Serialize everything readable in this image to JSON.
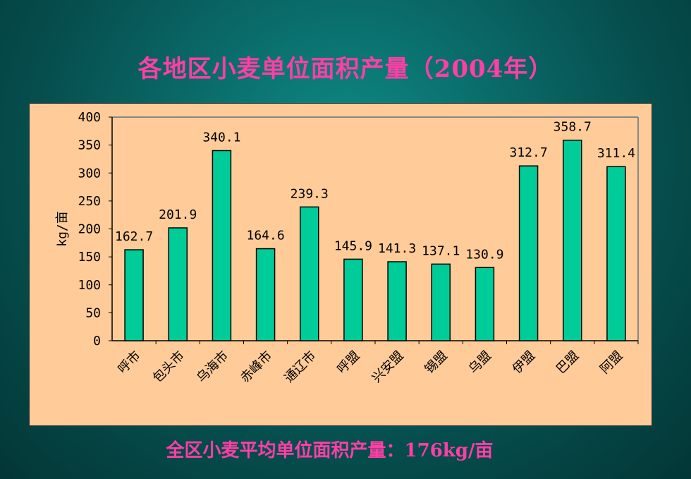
{
  "slide": {
    "title": "各地区小麦单位面积产量（2004年）",
    "footer": "全区小麦平均单位面积产量：176kg/亩"
  },
  "colors": {
    "background": "#064d4d",
    "title": "#ff3ea6",
    "plot_area": "#ffcc99",
    "bar_fill": "#00cc99",
    "bar_stroke": "#000000"
  },
  "chart_data": {
    "type": "bar",
    "title": "",
    "xlabel": "",
    "ylabel": "kg/亩",
    "ylim": [
      0,
      400
    ],
    "yticks": [
      0,
      50,
      100,
      150,
      200,
      250,
      300,
      350,
      400
    ],
    "grid": false,
    "categories": [
      "呼市",
      "包头市",
      "乌海市",
      "赤峰市",
      "通辽市",
      "呼盟",
      "兴安盟",
      "锡盟",
      "乌盟",
      "伊盟",
      "巴盟",
      "阿盟"
    ],
    "values": [
      162.7,
      201.9,
      340.1,
      164.6,
      239.3,
      145.9,
      141.3,
      137.1,
      130.9,
      312.7,
      358.7,
      311.4
    ],
    "data_labels": [
      "162.7",
      "201.9",
      "340.1",
      "164.6",
      "239.3",
      "145.9",
      "141.3",
      "137.1",
      "130.9",
      "312.7",
      "358.7",
      "311.4"
    ]
  }
}
